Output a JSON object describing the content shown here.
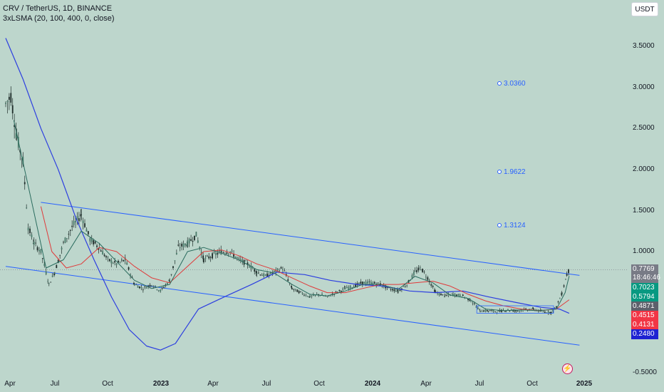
{
  "header": {
    "title": "CRV / TetherUS, 1D, BINANCE",
    "indicator": "3xLSMA (20, 100, 400, 0, close)"
  },
  "currency_button": "USDT",
  "y_ticks": [
    "3.5000",
    "3.0000",
    "2.5000",
    "2.0000",
    "1.5000",
    "1.0000",
    "-0.5000"
  ],
  "x_ticks": [
    {
      "label": "Apr",
      "bold": false
    },
    {
      "label": "Jul",
      "bold": false
    },
    {
      "label": "Oct",
      "bold": false
    },
    {
      "label": "2023",
      "bold": true
    },
    {
      "label": "Apr",
      "bold": false
    },
    {
      "label": "Jul",
      "bold": false
    },
    {
      "label": "Oct",
      "bold": false
    },
    {
      "label": "2024",
      "bold": true
    },
    {
      "label": "Apr",
      "bold": false
    },
    {
      "label": "Jul",
      "bold": false
    },
    {
      "label": "Oct",
      "bold": false
    },
    {
      "label": "2025",
      "bold": true
    }
  ],
  "fib_labels": [
    "3.0360",
    "1.9622",
    "1.3124"
  ],
  "price_labels": [
    {
      "value": "0.7769",
      "extra": "18:46:46",
      "color": "#787b86"
    },
    {
      "value": "0.7023",
      "color": "#089981"
    },
    {
      "value": "0.5794",
      "color": "#089981"
    },
    {
      "value": "0.4871",
      "color": "#5d606b"
    },
    {
      "value": "0.4515",
      "color": "#f23645"
    },
    {
      "value": "0.4131",
      "color": "#f23645"
    },
    {
      "value": "0.2480",
      "color": "#1e22d2"
    }
  ],
  "colors": {
    "background": "#bdd6cc",
    "candles": "#1f2d2a",
    "lsma_fast": "#2a6b5e",
    "lsma_mid": "#e03a3a",
    "lsma_slow": "#2c3ee0",
    "channel": "#2962ff",
    "current_price_line": "#787b86"
  },
  "chart_data": {
    "type": "line",
    "title": "CRV / TetherUS, 1D, BINANCE",
    "ylim": [
      -0.5,
      3.7
    ],
    "xlim": [
      "2022-04-01",
      "2025-01-15"
    ],
    "series": [
      {
        "name": "CRV / TetherUS close",
        "points": [
          [
            "2022-04-01",
            2.8
          ],
          [
            "2022-04-10",
            2.9
          ],
          [
            "2022-04-20",
            2.4
          ],
          [
            "2022-05-01",
            2.1
          ],
          [
            "2022-05-10",
            1.3
          ],
          [
            "2022-05-20",
            1.1
          ],
          [
            "2022-06-01",
            1.0
          ],
          [
            "2022-06-15",
            0.6
          ],
          [
            "2022-06-25",
            0.75
          ],
          [
            "2022-07-10",
            1.1
          ],
          [
            "2022-07-25",
            1.3
          ],
          [
            "2022-08-10",
            1.45
          ],
          [
            "2022-08-25",
            1.15
          ],
          [
            "2022-09-10",
            1.05
          ],
          [
            "2022-09-25",
            0.9
          ],
          [
            "2022-10-10",
            0.85
          ],
          [
            "2022-10-25",
            0.9
          ],
          [
            "2022-11-10",
            0.6
          ],
          [
            "2022-11-25",
            0.55
          ],
          [
            "2022-12-10",
            0.6
          ],
          [
            "2022-12-25",
            0.52
          ],
          [
            "2023-01-10",
            0.65
          ],
          [
            "2023-01-25",
            1.05
          ],
          [
            "2023-02-10",
            1.1
          ],
          [
            "2023-02-25",
            1.2
          ],
          [
            "2023-03-10",
            0.9
          ],
          [
            "2023-03-25",
            0.95
          ],
          [
            "2023-04-10",
            1.0
          ],
          [
            "2023-04-25",
            1.0
          ],
          [
            "2023-05-10",
            0.9
          ],
          [
            "2023-05-25",
            0.85
          ],
          [
            "2023-06-10",
            0.75
          ],
          [
            "2023-06-25",
            0.7
          ],
          [
            "2023-07-10",
            0.75
          ],
          [
            "2023-07-25",
            0.8
          ],
          [
            "2023-08-10",
            0.55
          ],
          [
            "2023-08-25",
            0.5
          ],
          [
            "2023-09-10",
            0.45
          ],
          [
            "2023-09-25",
            0.48
          ],
          [
            "2023-10-10",
            0.45
          ],
          [
            "2023-10-25",
            0.5
          ],
          [
            "2023-11-10",
            0.55
          ],
          [
            "2023-11-25",
            0.58
          ],
          [
            "2023-12-10",
            0.62
          ],
          [
            "2023-12-25",
            0.62
          ],
          [
            "2024-01-10",
            0.6
          ],
          [
            "2024-01-25",
            0.55
          ],
          [
            "2024-02-10",
            0.52
          ],
          [
            "2024-02-25",
            0.6
          ],
          [
            "2024-03-10",
            0.75
          ],
          [
            "2024-03-20",
            0.8
          ],
          [
            "2024-04-01",
            0.68
          ],
          [
            "2024-04-15",
            0.5
          ],
          [
            "2024-05-01",
            0.46
          ],
          [
            "2024-05-15",
            0.48
          ],
          [
            "2024-06-01",
            0.46
          ],
          [
            "2024-06-15",
            0.4
          ],
          [
            "2024-07-01",
            0.28
          ],
          [
            "2024-07-15",
            0.28
          ],
          [
            "2024-08-01",
            0.27
          ],
          [
            "2024-08-15",
            0.29
          ],
          [
            "2024-09-01",
            0.28
          ],
          [
            "2024-09-15",
            0.29
          ],
          [
            "2024-10-01",
            0.3
          ],
          [
            "2024-10-15",
            0.27
          ],
          [
            "2024-11-01",
            0.26
          ],
          [
            "2024-11-10",
            0.33
          ],
          [
            "2024-11-20",
            0.5
          ],
          [
            "2024-11-28",
            0.72
          ],
          [
            "2024-12-02",
            0.7769
          ]
        ]
      },
      {
        "name": "LSMA 20",
        "points": [
          [
            "2022-04-15",
            2.6
          ],
          [
            "2022-05-10",
            1.8
          ],
          [
            "2022-06-10",
            0.8
          ],
          [
            "2022-07-10",
            0.9
          ],
          [
            "2022-08-10",
            1.25
          ],
          [
            "2022-09-10",
            1.1
          ],
          [
            "2022-10-10",
            0.88
          ],
          [
            "2022-11-10",
            0.65
          ],
          [
            "2022-12-10",
            0.55
          ],
          [
            "2023-01-10",
            0.6
          ],
          [
            "2023-02-10",
            1.0
          ],
          [
            "2023-03-10",
            1.05
          ],
          [
            "2023-04-10",
            0.98
          ],
          [
            "2023-05-10",
            0.9
          ],
          [
            "2023-06-10",
            0.78
          ],
          [
            "2023-07-10",
            0.74
          ],
          [
            "2023-08-10",
            0.6
          ],
          [
            "2023-09-10",
            0.48
          ],
          [
            "2023-10-10",
            0.46
          ],
          [
            "2023-11-10",
            0.52
          ],
          [
            "2023-12-10",
            0.6
          ],
          [
            "2024-01-10",
            0.6
          ],
          [
            "2024-02-10",
            0.54
          ],
          [
            "2024-03-10",
            0.7
          ],
          [
            "2024-04-10",
            0.62
          ],
          [
            "2024-05-10",
            0.47
          ],
          [
            "2024-06-10",
            0.43
          ],
          [
            "2024-07-10",
            0.3
          ],
          [
            "2024-08-10",
            0.28
          ],
          [
            "2024-09-10",
            0.29
          ],
          [
            "2024-10-10",
            0.28
          ],
          [
            "2024-11-10",
            0.3
          ],
          [
            "2024-11-25",
            0.5
          ],
          [
            "2024-12-02",
            0.7023
          ]
        ]
      },
      {
        "name": "LSMA 100",
        "points": [
          [
            "2022-06-01",
            1.55
          ],
          [
            "2022-06-20",
            1.0
          ],
          [
            "2022-07-15",
            0.8
          ],
          [
            "2022-08-10",
            0.85
          ],
          [
            "2022-09-10",
            1.05
          ],
          [
            "2022-10-10",
            1.0
          ],
          [
            "2022-11-10",
            0.82
          ],
          [
            "2022-12-10",
            0.68
          ],
          [
            "2023-01-10",
            0.62
          ],
          [
            "2023-02-10",
            0.82
          ],
          [
            "2023-03-10",
            1.0
          ],
          [
            "2023-04-10",
            1.02
          ],
          [
            "2023-05-10",
            0.95
          ],
          [
            "2023-06-10",
            0.85
          ],
          [
            "2023-07-10",
            0.78
          ],
          [
            "2023-08-10",
            0.68
          ],
          [
            "2023-09-10",
            0.58
          ],
          [
            "2023-10-10",
            0.5
          ],
          [
            "2023-11-10",
            0.5
          ],
          [
            "2023-12-10",
            0.55
          ],
          [
            "2024-01-10",
            0.6
          ],
          [
            "2024-02-10",
            0.6
          ],
          [
            "2024-03-10",
            0.62
          ],
          [
            "2024-04-10",
            0.64
          ],
          [
            "2024-05-10",
            0.58
          ],
          [
            "2024-06-10",
            0.48
          ],
          [
            "2024-07-10",
            0.4
          ],
          [
            "2024-08-10",
            0.34
          ],
          [
            "2024-09-10",
            0.3
          ],
          [
            "2024-10-10",
            0.28
          ],
          [
            "2024-11-10",
            0.3
          ],
          [
            "2024-12-02",
            0.4131
          ]
        ]
      },
      {
        "name": "LSMA 400",
        "points": [
          [
            "2022-04-01",
            3.6
          ],
          [
            "2022-05-01",
            3.1
          ],
          [
            "2022-06-01",
            2.5
          ],
          [
            "2022-07-01",
            2.0
          ],
          [
            "2022-08-01",
            1.4
          ],
          [
            "2022-09-01",
            0.9
          ],
          [
            "2022-10-01",
            0.45
          ],
          [
            "2022-11-01",
            0.05
          ],
          [
            "2022-12-01",
            -0.15
          ],
          [
            "2022-12-25",
            -0.2
          ],
          [
            "2023-01-20",
            -0.12
          ],
          [
            "2023-03-01",
            0.3
          ],
          [
            "2023-04-15",
            0.45
          ],
          [
            "2023-06-01",
            0.6
          ],
          [
            "2023-07-15",
            0.75
          ],
          [
            "2023-09-01",
            0.72
          ],
          [
            "2023-10-15",
            0.65
          ],
          [
            "2023-12-01",
            0.6
          ],
          [
            "2024-01-15",
            0.58
          ],
          [
            "2024-03-01",
            0.52
          ],
          [
            "2024-04-15",
            0.5
          ],
          [
            "2024-06-01",
            0.52
          ],
          [
            "2024-07-15",
            0.45
          ],
          [
            "2024-09-01",
            0.38
          ],
          [
            "2024-10-15",
            0.32
          ],
          [
            "2024-11-15",
            0.3
          ],
          [
            "2024-12-02",
            0.248
          ]
        ]
      },
      {
        "name": "Channel upper",
        "points": [
          [
            "2022-06-01",
            1.6
          ],
          [
            "2024-12-20",
            0.71
          ]
        ]
      },
      {
        "name": "Channel lower",
        "points": [
          [
            "2022-04-01",
            0.82
          ],
          [
            "2024-12-20",
            -0.14
          ]
        ]
      }
    ],
    "fib_levels": [
      3.036,
      1.9622,
      1.3124
    ],
    "current_price": 0.7769
  }
}
